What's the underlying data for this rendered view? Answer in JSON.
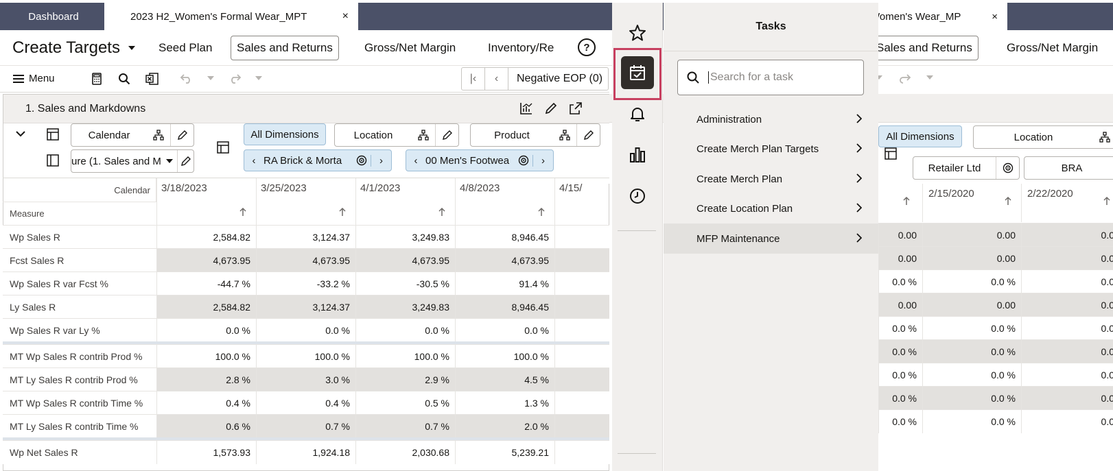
{
  "left": {
    "tabs": {
      "dashboard": "Dashboard",
      "active": "2023 H2_Women's Formal Wear_MPT",
      "close": "×"
    },
    "header": {
      "title": "Create Targets",
      "nav": [
        "Seed Plan",
        "Sales and Returns",
        "Gross/Net Margin",
        "Inventory/Re"
      ]
    },
    "toolbar": {
      "menu": "Menu",
      "pager_text": "Negative EOP (0)"
    },
    "panel": {
      "title": "1. Sales and Markdowns"
    },
    "dims": {
      "calendar": "Calendar",
      "measure": "ure (1. Sales and M",
      "all": "All Dimensions",
      "location": "Location",
      "product": "Product",
      "loc_value": "RA Brick & Morta",
      "prod_value": "00 Men's Footwea"
    },
    "grid": {
      "corner_top": "Calendar",
      "corner_bottom": "Measure",
      "columns": [
        "3/18/2023",
        "3/25/2023",
        "4/1/2023",
        "4/8/2023",
        "4/15/"
      ],
      "rows": [
        {
          "label": "Wp Sales R",
          "values": [
            "2,584.82",
            "3,124.37",
            "3,249.83",
            "8,946.45"
          ],
          "shade": false
        },
        {
          "label": "Fcst Sales R",
          "values": [
            "4,673.95",
            "4,673.95",
            "4,673.95",
            "4,673.95"
          ],
          "shade": true
        },
        {
          "label": "Wp Sales R var Fcst %",
          "values": [
            "-44.7 %",
            "-33.2 %",
            "-30.5 %",
            "91.4 %"
          ],
          "shade": false
        },
        {
          "label": "Ly Sales R",
          "values": [
            "2,584.82",
            "3,124.37",
            "3,249.83",
            "8,946.45"
          ],
          "shade": true
        },
        {
          "label": "Wp Sales R var Ly %",
          "values": [
            "0.0 %",
            "0.0 %",
            "0.0 %",
            "0.0 %"
          ],
          "shade": false
        },
        {
          "label": "MT Wp Sales R contrib Prod %",
          "values": [
            "100.0 %",
            "100.0 %",
            "100.0 %",
            "100.0 %"
          ],
          "shade": false
        },
        {
          "label": "MT Ly Sales R contrib Prod %",
          "values": [
            "2.8 %",
            "3.0 %",
            "2.9 %",
            "4.5 %"
          ],
          "shade": true
        },
        {
          "label": "MT Wp Sales R contrib Time %",
          "values": [
            "0.4 %",
            "0.4 %",
            "0.5 %",
            "1.3 %"
          ],
          "shade": false
        },
        {
          "label": "MT Ly Sales R contrib Time %",
          "values": [
            "0.6 %",
            "0.7 %",
            "0.7 %",
            "2.0 %"
          ],
          "shade": true
        },
        {
          "label": "Wp Net Sales R",
          "values": [
            "1,573.93",
            "1,924.18",
            "2,030.68",
            "5,239.21"
          ],
          "shade": false
        }
      ]
    }
  },
  "tasks": {
    "title": "Tasks",
    "search_placeholder": "Search for a task",
    "items": [
      "Administration",
      "Create Merch Plan Targets",
      "Create Merch Plan",
      "Create Location Plan",
      "MFP Maintenance"
    ]
  },
  "right": {
    "tab_title": "Women's Wear_MP",
    "tab_close": "×",
    "nav": [
      "Sales and Returns",
      "Gross/Net Margin"
    ],
    "dims": {
      "all": "All Dimensions",
      "location": "Location",
      "retailer": "Retailer Ltd",
      "bra": "BRA"
    },
    "columns": [
      "2/15/2020",
      "2/22/2020"
    ],
    "rows": [
      [
        "0.00",
        "0.00",
        "0.0"
      ],
      [
        "0.00",
        "0.00",
        "0.0"
      ],
      [
        "0.0 %",
        "0.0 %",
        "0.0"
      ],
      [
        "0.00",
        "0.00",
        "0.0"
      ],
      [
        "0.0 %",
        "0.0 %",
        "0.0"
      ],
      [
        "0.0 %",
        "0.0 %",
        "0.0"
      ],
      [
        "0.0 %",
        "0.0 %",
        "0.0"
      ],
      [
        "0.0 %",
        "0.0 %",
        "0.0"
      ],
      [
        "0.0 %",
        "0.0 %",
        "0.0"
      ]
    ]
  },
  "colors": {
    "tabbar": "#4b5168",
    "accent_red": "#c74060",
    "rail": "#f1efed",
    "shade": "#e3e1de",
    "chip": "#dbeaf5"
  }
}
